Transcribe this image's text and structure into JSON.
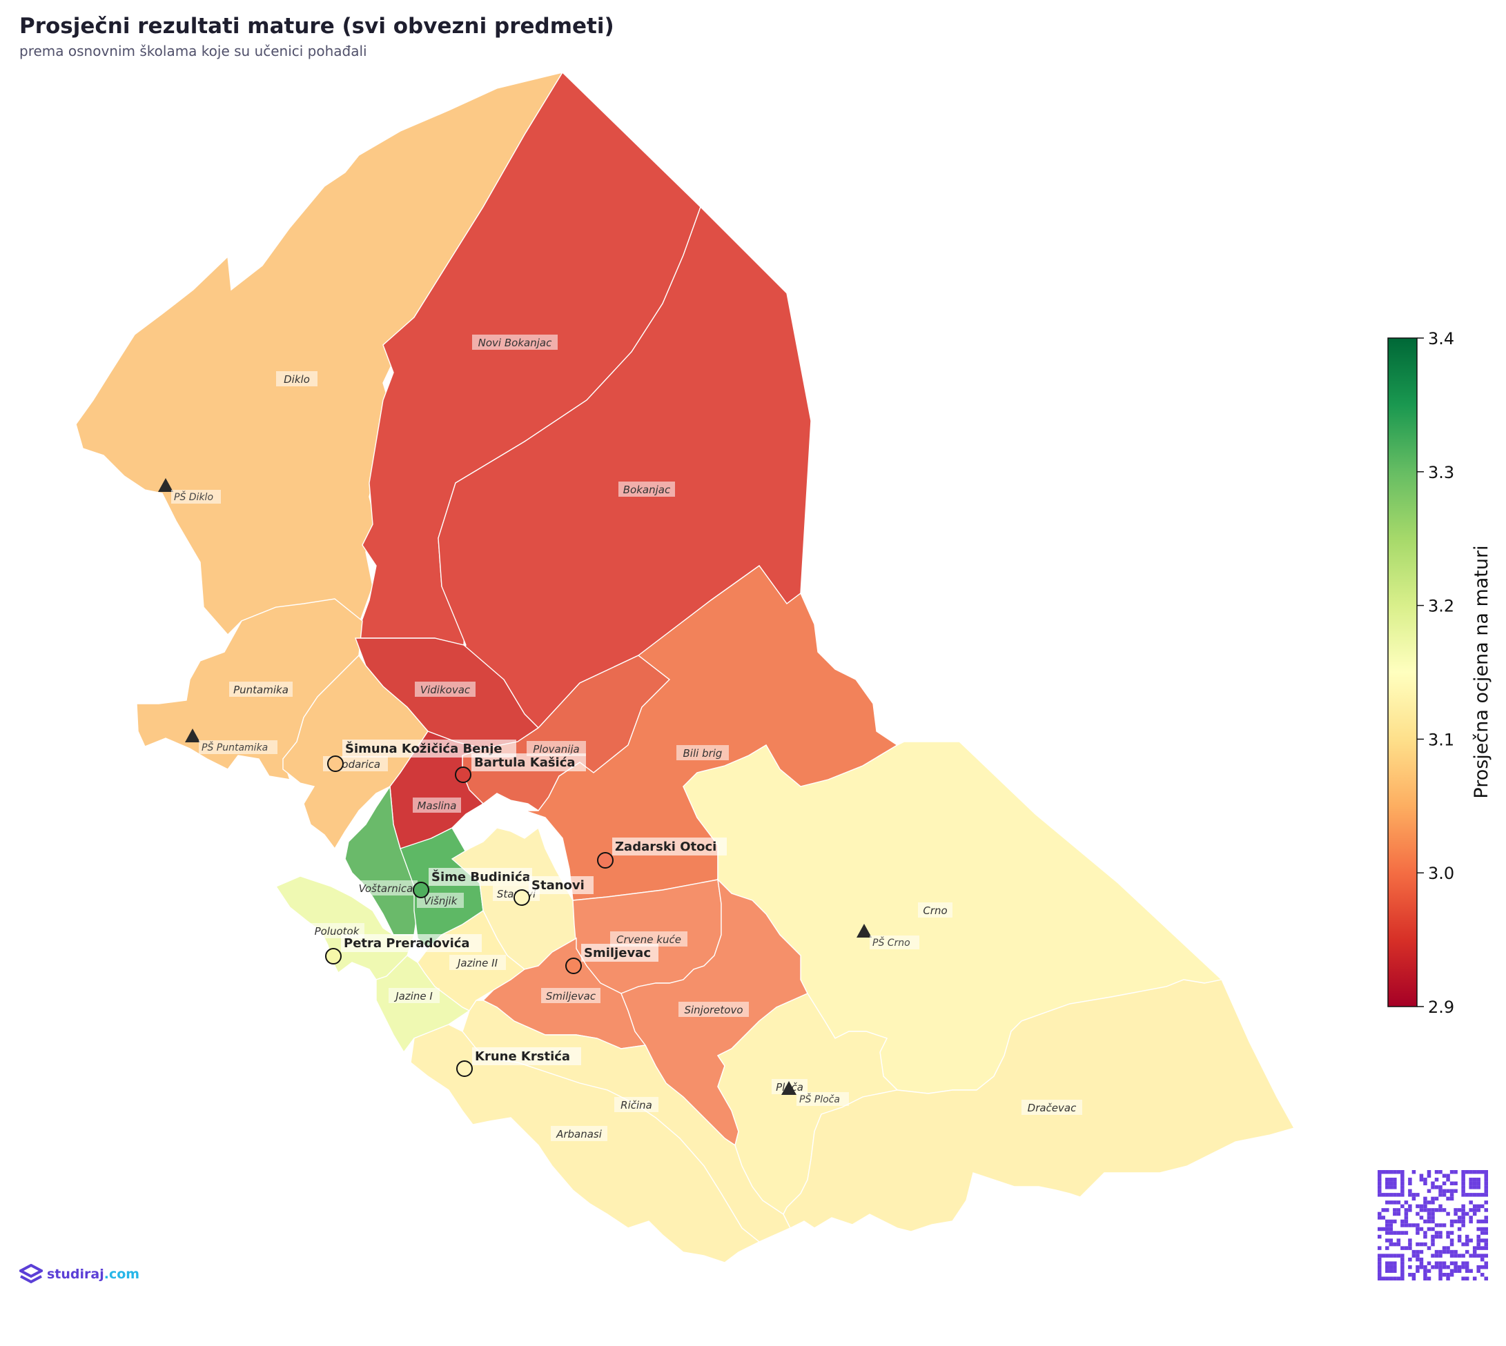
{
  "title": "Prosječni rezultati mature (svi obvezni predmeti)",
  "subtitle": "prema osnovnim školama koje su učenici pohađali",
  "colorbar": {
    "label": "Prosječna ocjena na maturi",
    "min": 2.9,
    "max": 3.4,
    "ticks": [
      "3.4",
      "3.3",
      "3.2",
      "3.1",
      "3.0",
      "2.9"
    ],
    "colormap": "RdYlGn"
  },
  "neighborhoods": [
    {
      "id": "diklo",
      "name": "Diklo",
      "color": "#fcc986"
    },
    {
      "id": "novi-bokanjac",
      "name": "Novi Bokanjac",
      "color": "#df4f45"
    },
    {
      "id": "bokanjac",
      "name": "Bokanjac",
      "color": "#df4f45"
    },
    {
      "id": "puntamika",
      "name": "Puntamika",
      "color": "#fcc986"
    },
    {
      "id": "vidikovac",
      "name": "Vidikovac",
      "color": "#d7453f"
    },
    {
      "id": "brodarica",
      "name": "Brodarica",
      "color": "#fcc986"
    },
    {
      "id": "plovanija",
      "name": "Plovanija",
      "color": "#e96b50"
    },
    {
      "id": "bili-brig",
      "name": "Bili brig",
      "color": "#f2825a"
    },
    {
      "id": "maslina",
      "name": "Maslina",
      "color": "#d0393a"
    },
    {
      "id": "vostarnica",
      "name": "Voštarnica",
      "color": "#6aba6a"
    },
    {
      "id": "visnjik",
      "name": "Višnjik",
      "color": "#5eb865"
    },
    {
      "id": "stanovi",
      "name": "Stanovi",
      "color": "#fef2b6"
    },
    {
      "id": "crno",
      "name": "Crno",
      "color": "#fff6b9"
    },
    {
      "id": "poluotok",
      "name": "Poluotok",
      "color": "#eff9b2"
    },
    {
      "id": "jazine-ii",
      "name": "Jazine II",
      "color": "#fff1b0"
    },
    {
      "id": "crvene-kuce",
      "name": "Crvene kuće",
      "color": "#f5906a"
    },
    {
      "id": "smiljevac",
      "name": "Smiljevac",
      "color": "#f5906a"
    },
    {
      "id": "sinjoretovo",
      "name": "Sinjoretovo",
      "color": "#f5906a"
    },
    {
      "id": "jazine-i",
      "name": "Jazine I",
      "color": "#eff9b2"
    },
    {
      "id": "ricina",
      "name": "Ričina",
      "color": "#fff1b3"
    },
    {
      "id": "arbanasi",
      "name": "Arbanasi",
      "color": "#fff1b3"
    },
    {
      "id": "ploca",
      "name": "Ploča",
      "color": "#fff3b5"
    },
    {
      "id": "dracevac",
      "name": "Dračevac",
      "color": "#fff1b3"
    }
  ],
  "schools": [
    {
      "name": "Šimuna Kožičića Benje",
      "color": "#fdc989"
    },
    {
      "name": "Bartula Kašića",
      "color": "#d7403b"
    },
    {
      "name": "Zadarski Otoci",
      "color": "#f3795a"
    },
    {
      "name": "Šime Budinića",
      "color": "#4fae5d"
    },
    {
      "name": "Stanovi",
      "color": "#fff7c0"
    },
    {
      "name": "Petra Preradovića",
      "color": "#f6f7aa"
    },
    {
      "name": "Smiljevac",
      "color": "#f5875c"
    },
    {
      "name": "Krune Krstića",
      "color": "#fff3b8"
    }
  ],
  "branch_schools": [
    {
      "name": "PŠ Diklo"
    },
    {
      "name": "PŠ Puntamika"
    },
    {
      "name": "PŠ Crno"
    },
    {
      "name": "PŠ Ploča"
    }
  ],
  "branding": {
    "logo_name": "studiraj",
    "logo_suffix": ".com",
    "qr_color": "#6c3fe0"
  }
}
